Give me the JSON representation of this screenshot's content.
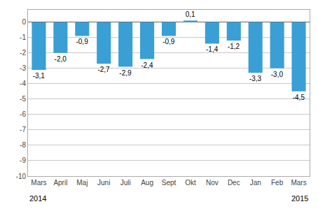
{
  "chart_data": {
    "type": "bar",
    "categories": [
      "Mars",
      "April",
      "Maj",
      "Juni",
      "Juli",
      "Aug",
      "Sept",
      "Okt",
      "Nov",
      "Dec",
      "Jan",
      "Feb",
      "Mars"
    ],
    "values": [
      -3.1,
      -2.0,
      -0.9,
      -2.7,
      -2.9,
      -2.4,
      -0.9,
      0.1,
      -1.4,
      -1.2,
      -3.3,
      -3.0,
      -4.5
    ],
    "value_labels": [
      "-3,1",
      "-2,0",
      "-0,9",
      "-2,7",
      "-2,9",
      "-2,4",
      "-0,9",
      "0,1",
      "-1,4",
      "-1,2",
      "-3,3",
      "-3,0",
      "-4,5"
    ],
    "color": "#3a9fd4",
    "ylim": [
      -10,
      0.8
    ],
    "yticks": [
      0,
      -1,
      -2,
      -3,
      -4,
      -5,
      -6,
      -7,
      -8,
      -9,
      -10
    ],
    "grid": true,
    "data_labels": true,
    "annotations": [
      "2014",
      "2015"
    ]
  }
}
